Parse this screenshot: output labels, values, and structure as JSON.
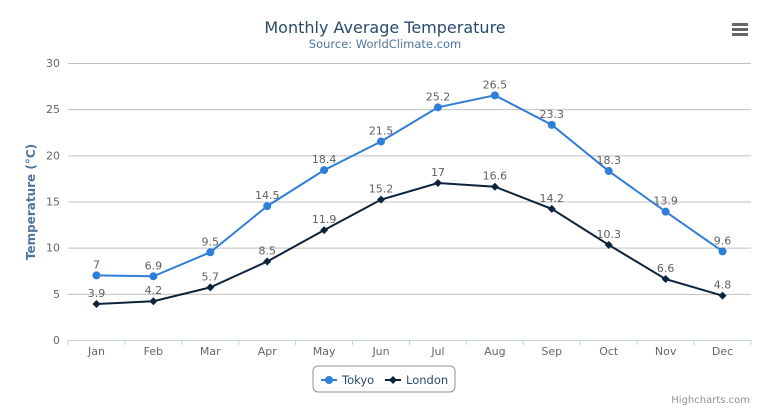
{
  "chart_data": {
    "type": "line",
    "title": "Monthly Average Temperature",
    "subtitle": "Source: WorldClimate.com",
    "xlabel": "",
    "ylabel": "Temperature (°C)",
    "ylim": [
      0,
      30
    ],
    "yticks": [
      0,
      5,
      10,
      15,
      20,
      25,
      30
    ],
    "grid": true,
    "legend": "bottom-center",
    "categories": [
      "Jan",
      "Feb",
      "Mar",
      "Apr",
      "May",
      "Jun",
      "Jul",
      "Aug",
      "Sep",
      "Oct",
      "Nov",
      "Dec"
    ],
    "series": [
      {
        "name": "Tokyo",
        "color": "#2f7ed8",
        "marker": "circle",
        "values": [
          7.0,
          6.9,
          9.5,
          14.5,
          18.4,
          21.5,
          25.2,
          26.5,
          23.3,
          18.3,
          13.9,
          9.6
        ]
      },
      {
        "name": "London",
        "color": "#0d233a",
        "marker": "diamond",
        "values": [
          3.9,
          4.2,
          5.7,
          8.5,
          11.9,
          15.2,
          17.0,
          16.6,
          14.2,
          10.3,
          6.6,
          4.8
        ]
      }
    ],
    "credits": "Highcharts.com"
  },
  "menu_icon": "hamburger-menu-icon"
}
